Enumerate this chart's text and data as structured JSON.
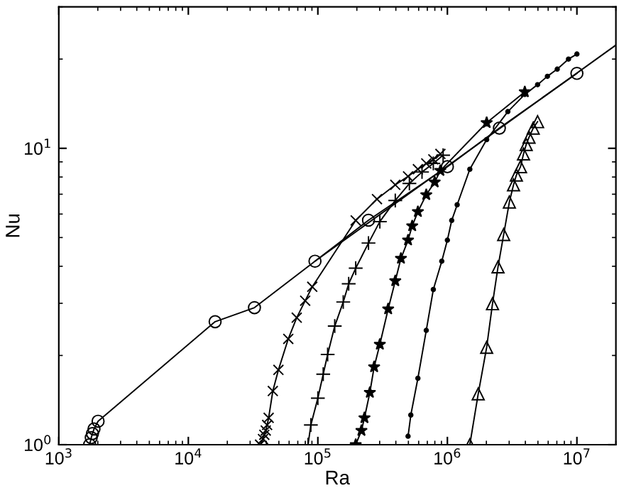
{
  "chart_data": {
    "type": "line",
    "xlabel": "Ra",
    "ylabel": "Nu",
    "log": "xy",
    "grid": false,
    "legend": false,
    "xlim": [
      1000,
      20000000
    ],
    "ylim": [
      1,
      30
    ],
    "xticks": [
      {
        "value": 1000,
        "label": "10$^{3}$"
      },
      {
        "value": 10000,
        "label": "10$^{4}$"
      },
      {
        "value": 100000,
        "label": "10$^{5}$"
      },
      {
        "value": 1000000,
        "label": "10$^{6}$"
      },
      {
        "value": 10000000,
        "label": "10$^{7}$"
      }
    ],
    "yticks": [
      {
        "value": 1,
        "label": "10$^{0}$"
      },
      {
        "value": 10,
        "label": "10$^{1}$"
      }
    ],
    "series": [
      {
        "color": "#000000",
        "marker": "circle",
        "x": [
          1730,
          1780,
          1820,
          1870,
          2010,
          16100,
          32400,
          95000,
          246000,
          1000000,
          2520000,
          10000000
        ],
        "values": [
          1.0,
          1.056,
          1.09,
          1.13,
          1.2,
          2.6,
          2.9,
          4.16,
          5.72,
          8.67,
          11.7,
          17.9
        ]
      },
      {
        "color": "#000000",
        "marker": "none",
        "x": [
          95000,
          20000000
        ],
        "values": [
          4.16,
          22.3
        ]
      },
      {
        "color": "#000000",
        "marker": "cross",
        "x": [
          35800,
          37700,
          38600,
          39600,
          40600,
          41700,
          44900,
          49600,
          59100,
          68700,
          79800,
          90500,
          196000,
          286000,
          396000,
          497000,
          592000,
          687000,
          779000,
          883000
        ],
        "values": [
          1.0,
          1.045,
          1.08,
          1.116,
          1.166,
          1.232,
          1.517,
          1.788,
          2.275,
          2.683,
          3.06,
          3.41,
          5.71,
          6.74,
          7.53,
          8.04,
          8.5,
          8.89,
          9.18,
          9.57
        ]
      },
      {
        "color": "#000000",
        "marker": "plus",
        "x": [
          84000,
          88300,
          100000,
          110000,
          119000,
          135000,
          157000,
          173000,
          196000,
          246000,
          301000,
          396000,
          509000,
          637000,
          779000,
          927000
        ],
        "values": [
          1.0,
          1.166,
          1.436,
          1.73,
          2.016,
          2.512,
          3.03,
          3.49,
          3.94,
          4.79,
          5.66,
          6.67,
          7.61,
          8.32,
          8.89,
          9.48
        ]
      },
      {
        "color": "#000000",
        "marker": "star",
        "x": [
          196000,
          217000,
          229000,
          252000,
          272000,
          301000,
          349000,
          396000,
          438000,
          497000,
          535000,
          592000,
          687000,
          798000,
          883000,
          2010000,
          3960000
        ],
        "values": [
          1.0,
          1.116,
          1.232,
          1.5,
          1.83,
          2.18,
          2.87,
          3.57,
          4.25,
          4.9,
          5.47,
          6.11,
          6.97,
          7.69,
          8.41,
          12.2,
          15.5
        ]
      },
      {
        "color": "#000000",
        "marker": "point",
        "x": [
          497000,
          522000,
          592000,
          687000,
          779000,
          905000,
          1000000,
          1080000,
          1190000,
          1490000,
          2010000,
          2930000,
          3960000,
          4970000,
          5920000,
          7050000,
          8610000,
          10000000
        ],
        "values": [
          1.068,
          1.259,
          1.675,
          2.43,
          3.34,
          4.16,
          4.9,
          5.71,
          6.45,
          8.5,
          10.7,
          13.3,
          15.2,
          16.4,
          17.5,
          18.5,
          20.0,
          20.8
        ]
      },
      {
        "color": "#000000",
        "marker": "triangle",
        "x": [
          1490000,
          1730000,
          2010000,
          2230000,
          2460000,
          2720000,
          3010000,
          3240000,
          3410000,
          3670000,
          3870000,
          4060000,
          4270000,
          4600000,
          4970000
        ],
        "values": [
          1.0,
          1.484,
          2.13,
          2.99,
          3.98,
          5.12,
          6.59,
          7.53,
          8.12,
          8.67,
          9.57,
          10.3,
          10.9,
          11.7,
          12.3
        ]
      }
    ]
  }
}
